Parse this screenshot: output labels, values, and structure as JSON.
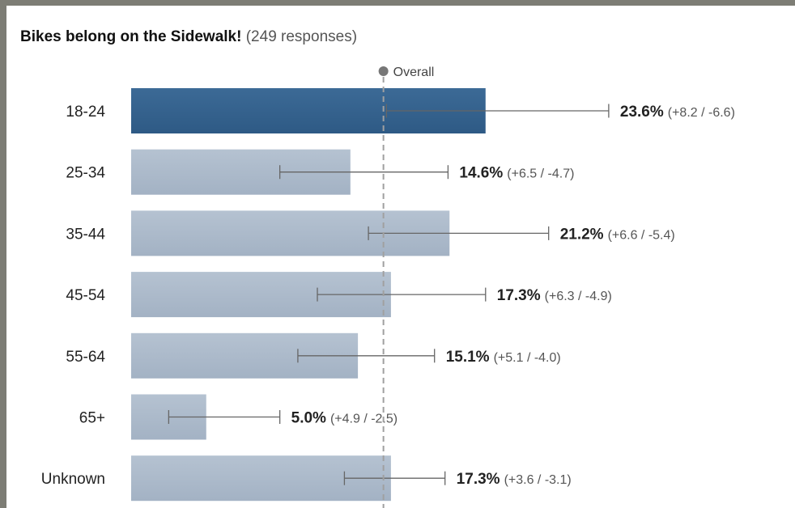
{
  "chart_data": {
    "type": "bar",
    "orientation": "horizontal",
    "title": "Bikes belong on the Sidewalk!",
    "subtitle": "(249 responses)",
    "reference_line": {
      "label": "Overall",
      "value": 16.8
    },
    "categories": [
      "18-24",
      "25-34",
      "35-44",
      "45-54",
      "55-64",
      "65+",
      "Unknown"
    ],
    "values": [
      23.6,
      14.6,
      21.2,
      17.3,
      15.1,
      5.0,
      17.3
    ],
    "value_labels": [
      "23.6%",
      "14.6%",
      "21.2%",
      "17.3%",
      "15.1%",
      "5.0%",
      "17.3%"
    ],
    "error_plus": [
      8.2,
      6.5,
      6.6,
      6.3,
      5.1,
      4.9,
      3.6
    ],
    "error_minus": [
      6.6,
      4.7,
      5.4,
      4.9,
      4.0,
      2.5,
      3.1
    ],
    "error_labels": [
      "(+8.2 / -6.6)",
      "(+6.5 / -4.7)",
      "(+6.6 / -5.4)",
      "(+6.3 / -4.9)",
      "(+5.1 / -4.0)",
      "(+4.9 / -2.5)",
      "(+3.6 / -3.1)"
    ],
    "highlighted_category": "18-24",
    "colors": {
      "highlight_bar": "#2e5a85",
      "bar": "#a3b2c4",
      "error_bar": "#666666",
      "reference_line": "#a0a0a0",
      "reference_dot": "#777777",
      "label_text": "#222222",
      "ci_text": "#555555"
    },
    "grid": false
  }
}
